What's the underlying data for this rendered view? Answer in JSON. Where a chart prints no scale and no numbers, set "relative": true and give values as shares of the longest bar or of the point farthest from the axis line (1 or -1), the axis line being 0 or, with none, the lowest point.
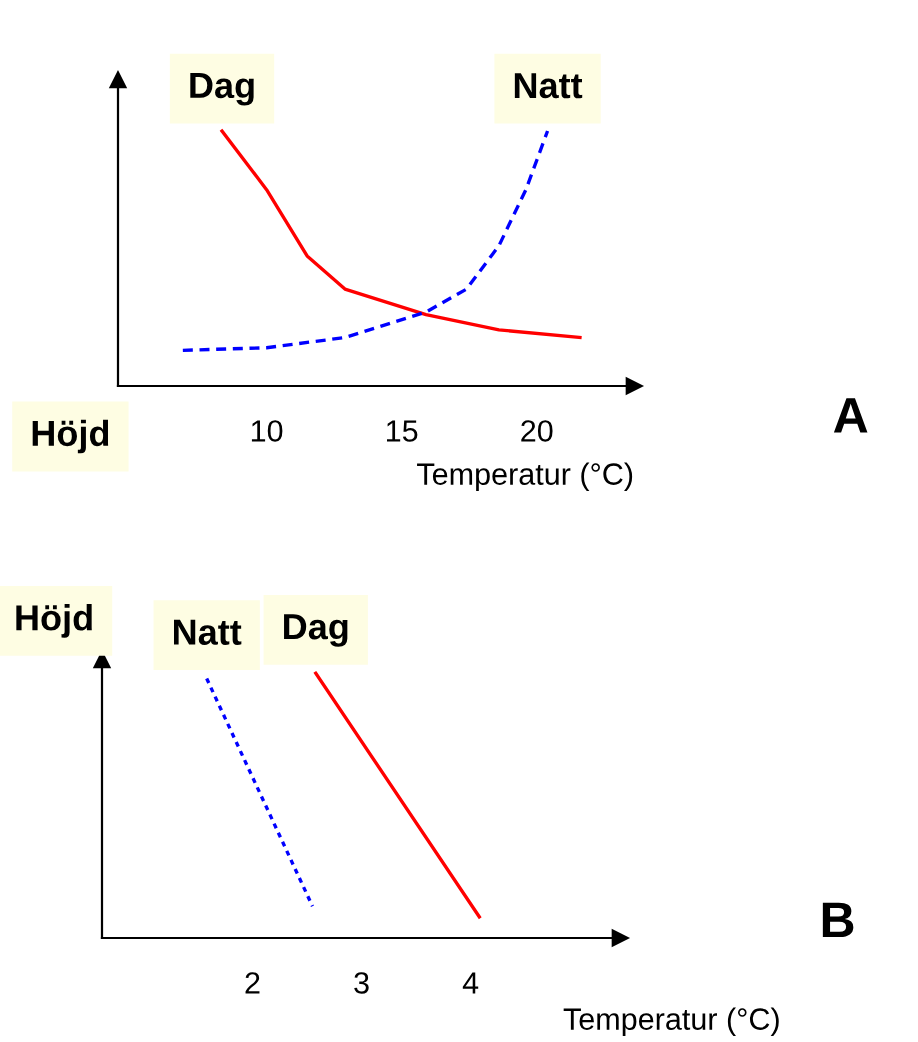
{
  "chart_data": [
    {
      "type": "line",
      "relative": true,
      "ylabel": "Höjd",
      "xlabel": "Temperatur (°C)",
      "xlim": [
        4.5,
        23.6
      ],
      "xticks": [
        10,
        15,
        20
      ],
      "tick_labels": "x",
      "annotations": [
        "A"
      ],
      "series": [
        {
          "name": "Dag",
          "color": "#ff0000",
          "line_style": "solid",
          "x": [
            8.35,
            10.0,
            11.5,
            12.9,
            15.9,
            18.6,
            21.6
          ],
          "values": [
            1,
            0.77,
            0.51,
            0.38,
            0.28,
            0.22,
            0.19
          ]
        },
        {
          "name": "Natt",
          "color": "#0000ff",
          "line_style": "dashed",
          "x": [
            6.9,
            10.0,
            12.9,
            15.9,
            17.4,
            18.6,
            19.6,
            20.4
          ],
          "values": [
            0.14,
            0.15,
            0.19,
            0.29,
            0.38,
            0.55,
            0.77,
            1
          ]
        }
      ]
    },
    {
      "type": "line",
      "relative": true,
      "ylabel": "Höjd",
      "xlabel": "Temperatur (°C)",
      "xlim": [
        0.62,
        5.37
      ],
      "xticks": [
        2,
        3,
        4
      ],
      "tick_labels": "x",
      "annotations": [
        "B"
      ],
      "series": [
        {
          "name": "Natt",
          "color": "#0000ff",
          "line_style": "dotted",
          "x": [
            1.58,
            2.55
          ],
          "values": [
            0.98,
            0.12
          ]
        },
        {
          "name": "Dag",
          "color": "#ff0000",
          "line_style": "solid",
          "x": [
            2.58,
            4.08
          ],
          "values": [
            1,
            0.08
          ]
        }
      ]
    }
  ]
}
